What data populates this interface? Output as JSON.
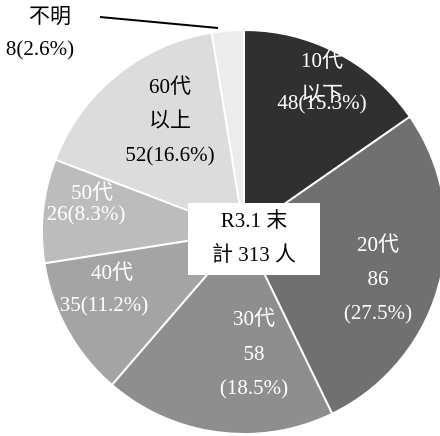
{
  "chart_data": {
    "type": "pie",
    "center_label": [
      "R3.1 末",
      "計 313 人"
    ],
    "categories": [
      "10代以下",
      "20代",
      "30代",
      "40代",
      "50代",
      "60代以上",
      "不明"
    ],
    "values": [
      48,
      86,
      58,
      35,
      26,
      52,
      8
    ],
    "value_labels": [
      "48(15.3%)",
      "86(27.5%)",
      "58(18.5%)",
      "35(11.2%)",
      "26(8.3%)",
      "52(16.6%)",
      "8(2.6%)"
    ],
    "colors": [
      "#303030",
      "#707070",
      "#8e8e8e",
      "#a4a4a4",
      "#bcbcbc",
      "#dcdcdc",
      "#ececec"
    ]
  }
}
